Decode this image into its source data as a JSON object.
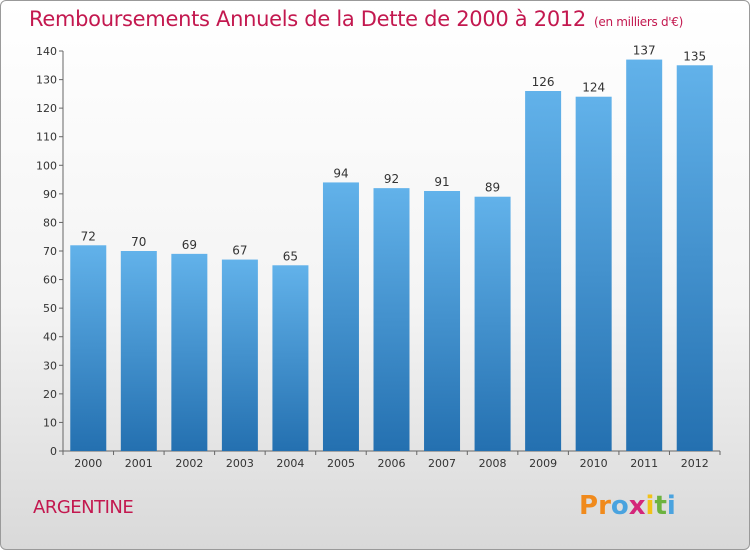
{
  "header": {
    "title": "Remboursements Annuels de la Dette de 2000 à 2012",
    "unit": "(en milliers d'€)"
  },
  "footer": {
    "location": "ARGENTINE",
    "brand": [
      "P",
      "r",
      "o",
      "x",
      "i",
      "t",
      "i"
    ]
  },
  "colors": {
    "title": "#c3184f",
    "bar_top": "#62b2ea",
    "bar_bottom": "#2470b0",
    "brand": [
      "#f08a1c",
      "#f08a1c",
      "#4aa3df",
      "#d4267a",
      "#f2c218",
      "#6cb33f",
      "#4aa3df"
    ]
  },
  "chart_data": {
    "type": "bar",
    "categories": [
      "2000",
      "2001",
      "2002",
      "2003",
      "2004",
      "2005",
      "2006",
      "2007",
      "2008",
      "2009",
      "2010",
      "2011",
      "2012"
    ],
    "values": [
      72,
      70,
      69,
      67,
      65,
      94,
      92,
      91,
      89,
      126,
      124,
      137,
      135
    ],
    "title": "Remboursements Annuels de la Dette de 2000 à 2012",
    "subtitle": "(en milliers d'€)",
    "ylim": [
      0,
      140
    ],
    "yticks": [
      0,
      10,
      20,
      30,
      40,
      50,
      60,
      70,
      80,
      90,
      100,
      110,
      120,
      130,
      140
    ],
    "grid": false,
    "data_labels": true
  }
}
